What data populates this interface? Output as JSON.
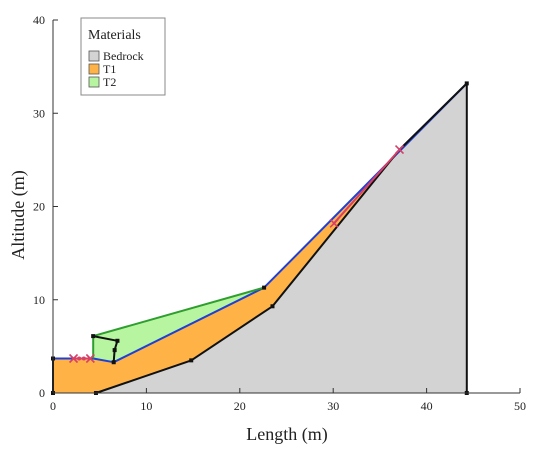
{
  "chart_data": {
    "type": "area",
    "title": "",
    "xlabel": "Length (m)",
    "ylabel": "Altitude (m)",
    "xlim": [
      0,
      50
    ],
    "ylim": [
      0,
      40
    ],
    "xticks": [
      "0",
      "10",
      "20",
      "30",
      "40",
      "50"
    ],
    "yticks": [
      "0",
      "10",
      "20",
      "30",
      "40"
    ],
    "grid": false,
    "legend": {
      "title": "Materials",
      "placement": "top-left",
      "entries": [
        {
          "label": "Bedrock",
          "color": "#d3d3d3"
        },
        {
          "label": "T1",
          "color": "#ffb347"
        },
        {
          "label": "T2",
          "color": "#b8f5a0"
        }
      ]
    },
    "regions": [
      {
        "name": "Bedrock",
        "color": "#d3d3d3",
        "points": [
          [
            4.6,
            0
          ],
          [
            44.3,
            0
          ],
          [
            44.3,
            33.2
          ],
          [
            37.1,
            26.1
          ],
          [
            23.5,
            9.3
          ],
          [
            14.8,
            3.5
          ]
        ]
      },
      {
        "name": "T1",
        "color": "#ffb347",
        "points": [
          [
            0,
            0
          ],
          [
            4.6,
            0
          ],
          [
            14.8,
            3.5
          ],
          [
            23.5,
            9.3
          ],
          [
            37.1,
            26.1
          ],
          [
            44.3,
            33.2
          ],
          [
            22.6,
            11.3
          ],
          [
            6.5,
            3.3
          ],
          [
            4.3,
            3.7
          ],
          [
            0,
            3.7
          ]
        ]
      },
      {
        "name": "T2",
        "color": "#b8f5a0",
        "points": [
          [
            4.3,
            3.7
          ],
          [
            6.5,
            3.3
          ],
          [
            22.6,
            11.3
          ],
          [
            4.3,
            6.1
          ]
        ]
      }
    ],
    "lines": [
      {
        "name": "surface",
        "color": "#1f3fd6",
        "points": [
          [
            0,
            3.7
          ],
          [
            4.3,
            3.7
          ],
          [
            6.5,
            3.3
          ],
          [
            22.6,
            11.3
          ],
          [
            44.3,
            33.2
          ]
        ]
      },
      {
        "name": "T2 top",
        "color": "#2e9e2e",
        "points": [
          [
            4.3,
            3.7
          ],
          [
            4.3,
            6.1
          ],
          [
            22.6,
            11.3
          ]
        ]
      },
      {
        "name": "bedrock interface",
        "color": "#111111",
        "points": [
          [
            4.6,
            0
          ],
          [
            14.8,
            3.5
          ],
          [
            23.5,
            9.3
          ],
          [
            37.1,
            26.1
          ],
          [
            44.3,
            33.2
          ],
          [
            44.3,
            0
          ]
        ]
      },
      {
        "name": "left boundary",
        "color": "#111111",
        "points": [
          [
            0,
            0
          ],
          [
            0,
            3.7
          ]
        ]
      },
      {
        "name": "inner box",
        "color": "#111111",
        "points": [
          [
            4.3,
            6.1
          ],
          [
            6.9,
            5.6
          ],
          [
            6.6,
            4.6
          ],
          [
            6.5,
            3.3
          ]
        ]
      }
    ],
    "vertices": [
      [
        0,
        0
      ],
      [
        4.6,
        0
      ],
      [
        44.3,
        0
      ],
      [
        14.8,
        3.5
      ],
      [
        23.5,
        9.3
      ],
      [
        6.5,
        3.3
      ],
      [
        22.6,
        11.3
      ],
      [
        4.3,
        6.1
      ],
      [
        6.9,
        5.6
      ],
      [
        6.6,
        4.6
      ],
      [
        0,
        3.7
      ],
      [
        44.3,
        33.2
      ]
    ],
    "markers": [
      {
        "color": "#d6406a",
        "segment": [
          [
            2.0,
            3.7
          ],
          [
            4.0,
            3.7
          ]
        ],
        "crosses": [
          [
            2.2,
            3.7
          ],
          [
            4.0,
            3.7
          ]
        ],
        "dots": [
          [
            2.8,
            3.7
          ],
          [
            3.3,
            3.7
          ]
        ]
      },
      {
        "color": "#d6406a",
        "segment": [
          [
            30.0,
            18.1
          ],
          [
            37.1,
            26.1
          ]
        ],
        "crosses": [
          [
            30.1,
            18.2
          ],
          [
            37.1,
            26.1
          ]
        ],
        "dots": []
      }
    ]
  }
}
